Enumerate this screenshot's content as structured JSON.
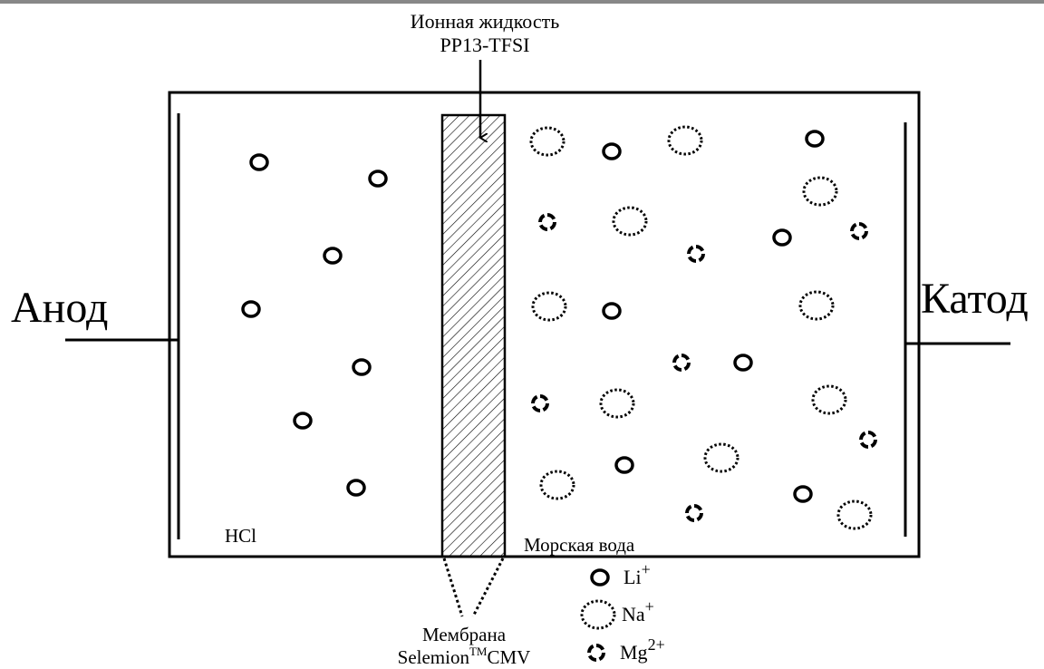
{
  "top_label": {
    "line1": "Ионная жидкость",
    "line2": "PP13-TFSI"
  },
  "anode": "Анод",
  "cathode": "Катод",
  "left_compartment": "HCl",
  "right_compartment": "Морская вода",
  "membrane": {
    "line1": "Мембрана",
    "name": "Selemion",
    "trademark": "TM",
    "suffix": "CMV"
  },
  "legend": [
    {
      "ion": "Li",
      "charge": "+"
    },
    {
      "ion": "Na",
      "charge": "+"
    },
    {
      "ion": "Mg",
      "charge": "2+"
    }
  ]
}
